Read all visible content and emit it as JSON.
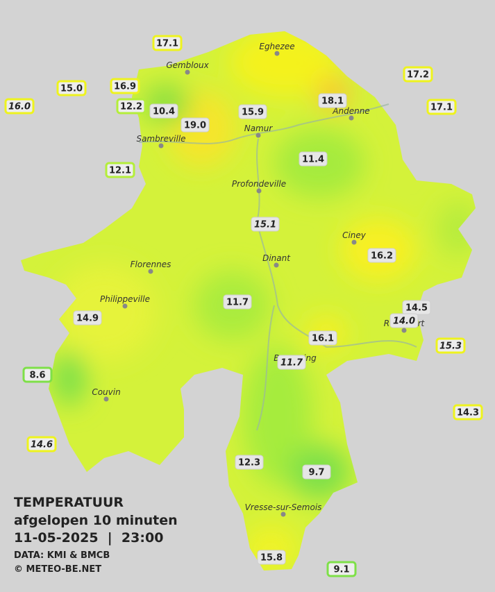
{
  "header": {
    "title": "TEMPERATUUR",
    "subtitle": "afgelopen 10 minuten",
    "datetime": "11-05-2025  |  23:00",
    "source": "DATA: KMI & BMCB",
    "credit": "© METEO-BE.NET"
  },
  "towns": [
    {
      "label": "Eghezee"
    },
    {
      "label": "Gembloux"
    },
    {
      "label": "Namur"
    },
    {
      "label": "Andenne"
    },
    {
      "label": "Sambreville"
    },
    {
      "label": "Profondeville"
    },
    {
      "label": "Ciney"
    },
    {
      "label": "Dinant"
    },
    {
      "label": "Florennes"
    },
    {
      "label": "Philippeville"
    },
    {
      "label": "Couvin"
    },
    {
      "label": "Vresse-sur-Semois"
    },
    {
      "label": "Rochefort"
    },
    {
      "label": "Beauraing"
    }
  ],
  "stations": [
    {
      "label": "17.1",
      "italic": false
    },
    {
      "label": "15.0",
      "italic": false
    },
    {
      "label": "16.0",
      "italic": true
    },
    {
      "label": "16.9",
      "italic": false
    },
    {
      "label": "12.2",
      "italic": false
    },
    {
      "label": "10.4",
      "italic": false
    },
    {
      "label": "19.0",
      "italic": false
    },
    {
      "label": "15.9",
      "italic": false
    },
    {
      "label": "18.1",
      "italic": false
    },
    {
      "label": "17.2",
      "italic": false
    },
    {
      "label": "17.1",
      "italic": false
    },
    {
      "label": "12.1",
      "italic": false
    },
    {
      "label": "11.4",
      "italic": false
    },
    {
      "label": "15.1",
      "italic": true
    },
    {
      "label": "16.2",
      "italic": false
    },
    {
      "label": "14.5",
      "italic": false
    },
    {
      "label": "14.0",
      "italic": true
    },
    {
      "label": "15.3",
      "italic": true
    },
    {
      "label": "11.7",
      "italic": false
    },
    {
      "label": "14.9",
      "italic": false
    },
    {
      "label": "16.1",
      "italic": false
    },
    {
      "label": "11.7",
      "italic": true
    },
    {
      "label": "8.6",
      "italic": false
    },
    {
      "label": "14.3",
      "italic": false
    },
    {
      "label": "14.6",
      "italic": true
    },
    {
      "label": "12.3",
      "italic": false
    },
    {
      "label": "9.7",
      "italic": false
    },
    {
      "label": "15.8",
      "italic": false
    },
    {
      "label": "9.1",
      "italic": false
    }
  ]
}
